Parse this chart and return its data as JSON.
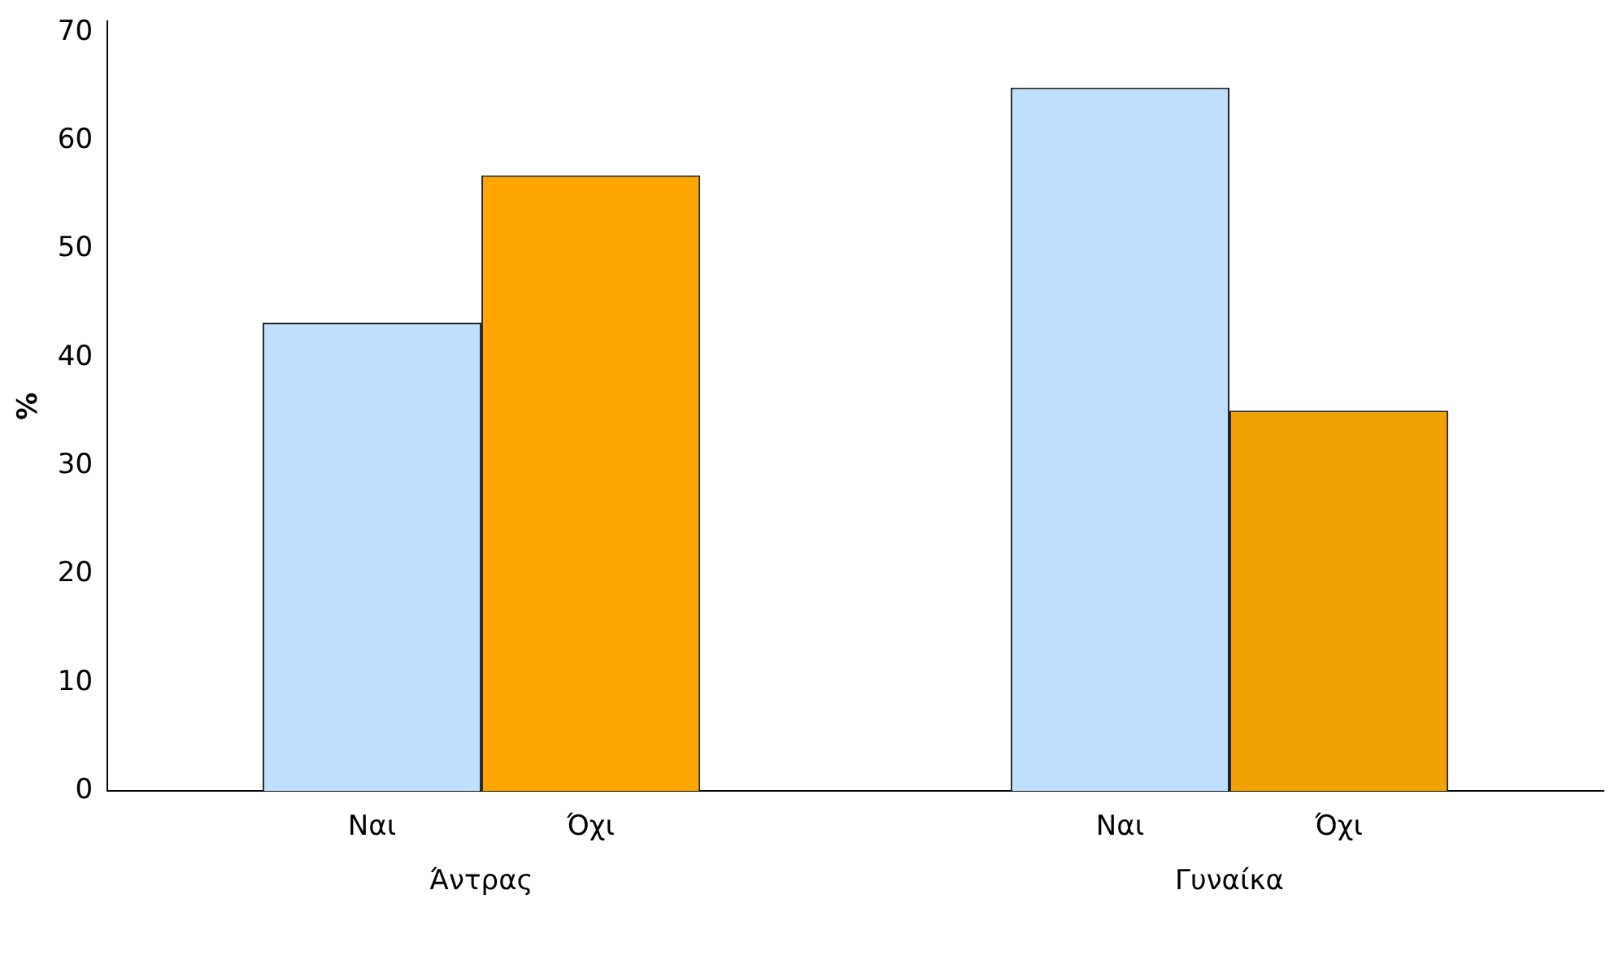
{
  "chart_data": {
    "type": "bar",
    "ylabel": "%",
    "categories": [
      "Άντρας",
      "Γυναίκα"
    ],
    "series": [
      {
        "name": "Ναι",
        "color": "#bfdfff",
        "values": [
          43.2,
          64.9
        ]
      },
      {
        "name": "Όχι",
        "colors": [
          "#ffa500",
          "#f0a000"
        ],
        "values": [
          56.8,
          35.1
        ]
      }
    ],
    "ylim": [
      0,
      71
    ],
    "yticks": [
      0,
      10,
      20,
      30,
      40,
      50,
      60,
      70
    ],
    "grid": false,
    "legend": false
  }
}
